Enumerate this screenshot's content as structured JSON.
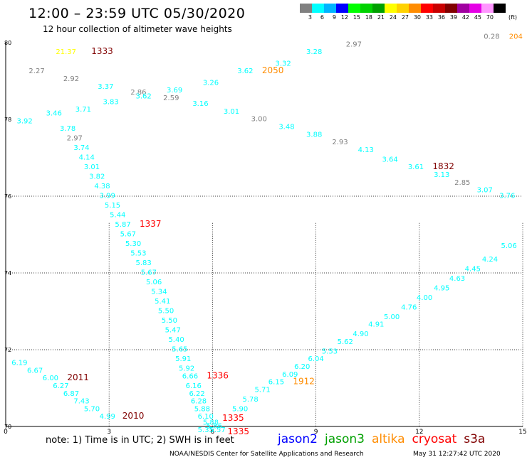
{
  "header": {
    "title": "12:00 – 23:59 UTC 05/30/2020",
    "subtitle": "12 hour collection of altimeter wave heights"
  },
  "legend": {
    "unit": "(ft)",
    "items": [
      {
        "label": "3",
        "color": "#808080"
      },
      {
        "label": "6",
        "color": "#00ffff"
      },
      {
        "label": "9",
        "color": "#00b4ff"
      },
      {
        "label": "12",
        "color": "#0000ff"
      },
      {
        "label": "15",
        "color": "#00ff00"
      },
      {
        "label": "18",
        "color": "#00d200"
      },
      {
        "label": "21",
        "color": "#00a000"
      },
      {
        "label": "24",
        "color": "#ffff00"
      },
      {
        "label": "27",
        "color": "#ffd200"
      },
      {
        "label": "30",
        "color": "#ff8c00"
      },
      {
        "label": "33",
        "color": "#ff0000"
      },
      {
        "label": "36",
        "color": "#c80000"
      },
      {
        "label": "39",
        "color": "#800000"
      },
      {
        "label": "42",
        "color": "#a000a0"
      },
      {
        "label": "45",
        "color": "#e600e6"
      },
      {
        "label": "70",
        "color": "#ff96ff"
      },
      {
        "label": "",
        "color": "#000000"
      }
    ]
  },
  "axes": {
    "x_ticks": [
      "0",
      "3",
      "6",
      "9",
      "12",
      "15"
    ],
    "y_ticks": [
      "80",
      "78",
      "76",
      "74",
      "72",
      "70"
    ]
  },
  "map_data": {
    "type": "scatter-map",
    "x_range": [
      0,
      15
    ],
    "y_range": [
      70,
      80
    ],
    "grid": true,
    "labels": [
      {
        "text": "21.37",
        "x": 1.75,
        "y": 79.7,
        "color": "#ffff00"
      },
      {
        "text": "1333",
        "x": 2.8,
        "y": 79.7,
        "color": "#800000"
      },
      {
        "text": "0.28",
        "x": 14.1,
        "y": 80.1,
        "color": "#808080"
      },
      {
        "text": "204",
        "x": 14.8,
        "y": 80.1,
        "color": "#ff8c00"
      },
      {
        "text": "2.27",
        "x": 0.9,
        "y": 79.2,
        "color": "#808080"
      },
      {
        "text": "2.92",
        "x": 1.9,
        "y": 79.0,
        "color": "#808080"
      },
      {
        "text": "3.37",
        "x": 2.9,
        "y": 78.8,
        "color": "#00ffff"
      },
      {
        "text": "2.86",
        "x": 3.85,
        "y": 78.65,
        "color": "#808080"
      },
      {
        "text": "3.62",
        "x": 4.0,
        "y": 78.55,
        "color": "#00ffff"
      },
      {
        "text": "3.69",
        "x": 4.9,
        "y": 78.7,
        "color": "#00ffff"
      },
      {
        "text": "2.59",
        "x": 4.8,
        "y": 78.5,
        "color": "#808080"
      },
      {
        "text": "3.26",
        "x": 5.95,
        "y": 78.9,
        "color": "#00ffff"
      },
      {
        "text": "3.62",
        "x": 6.95,
        "y": 79.2,
        "color": "#00ffff"
      },
      {
        "text": "2050",
        "x": 7.75,
        "y": 79.2,
        "color": "#ff8c00"
      },
      {
        "text": "3.32",
        "x": 8.05,
        "y": 79.4,
        "color": "#00ffff"
      },
      {
        "text": "3.28",
        "x": 8.95,
        "y": 79.7,
        "color": "#00ffff"
      },
      {
        "text": "2.97",
        "x": 10.1,
        "y": 79.9,
        "color": "#808080"
      },
      {
        "text": "3.83",
        "x": 3.05,
        "y": 78.4,
        "color": "#00ffff"
      },
      {
        "text": "3.16",
        "x": 5.65,
        "y": 78.35,
        "color": "#00ffff"
      },
      {
        "text": "3.01",
        "x": 6.55,
        "y": 78.15,
        "color": "#00ffff"
      },
      {
        "text": "3.00",
        "x": 7.35,
        "y": 77.95,
        "color": "#808080"
      },
      {
        "text": "3.48",
        "x": 8.15,
        "y": 77.75,
        "color": "#00ffff"
      },
      {
        "text": "3.88",
        "x": 8.95,
        "y": 77.55,
        "color": "#00ffff"
      },
      {
        "text": "2.93",
        "x": 9.7,
        "y": 77.35,
        "color": "#808080"
      },
      {
        "text": "4.13",
        "x": 10.45,
        "y": 77.15,
        "color": "#00ffff"
      },
      {
        "text": "3.64",
        "x": 11.15,
        "y": 76.9,
        "color": "#00ffff"
      },
      {
        "text": "3.61",
        "x": 11.9,
        "y": 76.7,
        "color": "#00ffff"
      },
      {
        "text": "1832",
        "x": 12.7,
        "y": 76.7,
        "color": "#800000"
      },
      {
        "text": "3.13",
        "x": 12.65,
        "y": 76.5,
        "color": "#00ffff"
      },
      {
        "text": "2.85",
        "x": 13.25,
        "y": 76.3,
        "color": "#808080"
      },
      {
        "text": "3.07",
        "x": 13.9,
        "y": 76.1,
        "color": "#00ffff"
      },
      {
        "text": "3.76",
        "x": 14.55,
        "y": 75.95,
        "color": "#00ffff"
      },
      {
        "text": "3.92",
        "x": 0.55,
        "y": 77.9,
        "color": "#00ffff"
      },
      {
        "text": "3.46",
        "x": 1.4,
        "y": 78.1,
        "color": "#00ffff"
      },
      {
        "text": "3.71",
        "x": 2.25,
        "y": 78.2,
        "color": "#00ffff"
      },
      {
        "text": "3.78",
        "x": 1.8,
        "y": 77.7,
        "color": "#00ffff"
      },
      {
        "text": "2.97",
        "x": 2.0,
        "y": 77.45,
        "color": "#808080"
      },
      {
        "text": "3.74",
        "x": 2.2,
        "y": 77.2,
        "color": "#00ffff"
      },
      {
        "text": "4.14",
        "x": 2.35,
        "y": 76.95,
        "color": "#00ffff"
      },
      {
        "text": "3.01",
        "x": 2.5,
        "y": 76.7,
        "color": "#00ffff"
      },
      {
        "text": "3.82",
        "x": 2.65,
        "y": 76.45,
        "color": "#00ffff"
      },
      {
        "text": "4.38",
        "x": 2.8,
        "y": 76.2,
        "color": "#00ffff"
      },
      {
        "text": "3.99",
        "x": 2.95,
        "y": 75.95,
        "color": "#00ffff"
      },
      {
        "text": "5.15",
        "x": 3.1,
        "y": 75.7,
        "color": "#00ffff"
      },
      {
        "text": "5.44",
        "x": 3.25,
        "y": 75.45,
        "color": "#00ffff"
      },
      {
        "text": "5.87",
        "x": 3.4,
        "y": 75.2,
        "color": "#00ffff"
      },
      {
        "text": "1337",
        "x": 4.2,
        "y": 75.2,
        "color": "#ff0000"
      },
      {
        "text": "5.67",
        "x": 3.55,
        "y": 74.95,
        "color": "#00ffff"
      },
      {
        "text": "5.30",
        "x": 3.7,
        "y": 74.7,
        "color": "#00ffff"
      },
      {
        "text": "5.53",
        "x": 3.85,
        "y": 74.45,
        "color": "#00ffff"
      },
      {
        "text": "5.83",
        "x": 4.0,
        "y": 74.2,
        "color": "#00ffff"
      },
      {
        "text": "5.67",
        "x": 4.15,
        "y": 73.95,
        "color": "#00ffff"
      },
      {
        "text": "5.06",
        "x": 4.3,
        "y": 73.7,
        "color": "#00ffff"
      },
      {
        "text": "5.34",
        "x": 4.45,
        "y": 73.45,
        "color": "#00ffff"
      },
      {
        "text": "5.41",
        "x": 4.55,
        "y": 73.2,
        "color": "#00ffff"
      },
      {
        "text": "5.50",
        "x": 4.65,
        "y": 72.95,
        "color": "#00ffff"
      },
      {
        "text": "5.50",
        "x": 4.75,
        "y": 72.7,
        "color": "#00ffff"
      },
      {
        "text": "5.47",
        "x": 4.85,
        "y": 72.45,
        "color": "#00ffff"
      },
      {
        "text": "5.40",
        "x": 4.95,
        "y": 72.2,
        "color": "#00ffff"
      },
      {
        "text": "5.65",
        "x": 5.05,
        "y": 71.95,
        "color": "#00ffff"
      },
      {
        "text": "5.91",
        "x": 5.15,
        "y": 71.7,
        "color": "#00ffff"
      },
      {
        "text": "5.92",
        "x": 5.25,
        "y": 71.45,
        "color": "#00ffff"
      },
      {
        "text": "6.66",
        "x": 5.35,
        "y": 71.25,
        "color": "#00ffff"
      },
      {
        "text": "1336",
        "x": 6.15,
        "y": 71.25,
        "color": "#ff0000"
      },
      {
        "text": "6.16",
        "x": 5.45,
        "y": 71.0,
        "color": "#00ffff"
      },
      {
        "text": "6.22",
        "x": 5.55,
        "y": 70.8,
        "color": "#00ffff"
      },
      {
        "text": "6.28",
        "x": 5.6,
        "y": 70.6,
        "color": "#00ffff"
      },
      {
        "text": "5.88",
        "x": 5.7,
        "y": 70.4,
        "color": "#00ffff"
      },
      {
        "text": "6.10",
        "x": 5.8,
        "y": 70.2,
        "color": "#00ffff"
      },
      {
        "text": "5.88",
        "x": 5.95,
        "y": 70.05,
        "color": "#00ffff"
      },
      {
        "text": "5.86",
        "x": 6.05,
        "y": 69.95,
        "color": "#00ffff"
      },
      {
        "text": "5.35",
        "x": 5.8,
        "y": 69.85,
        "color": "#00ffff"
      },
      {
        "text": "5.57",
        "x": 6.15,
        "y": 69.85,
        "color": "#00ffff"
      },
      {
        "text": "1335",
        "x": 6.6,
        "y": 70.15,
        "color": "#ff0000"
      },
      {
        "text": "1335",
        "x": 6.75,
        "y": 69.8,
        "color": "#ff0000"
      },
      {
        "text": "5.90",
        "x": 6.8,
        "y": 70.4,
        "color": "#00ffff"
      },
      {
        "text": "5.78",
        "x": 7.1,
        "y": 70.65,
        "color": "#00ffff"
      },
      {
        "text": "5.71",
        "x": 7.45,
        "y": 70.9,
        "color": "#00ffff"
      },
      {
        "text": "6.15",
        "x": 7.85,
        "y": 71.1,
        "color": "#00ffff"
      },
      {
        "text": "6.09",
        "x": 8.25,
        "y": 71.3,
        "color": "#00ffff"
      },
      {
        "text": "1912",
        "x": 8.65,
        "y": 71.1,
        "color": "#ff8c00"
      },
      {
        "text": "6.20",
        "x": 8.6,
        "y": 71.5,
        "color": "#00ffff"
      },
      {
        "text": "6.04",
        "x": 9.0,
        "y": 71.7,
        "color": "#00ffff"
      },
      {
        "text": "5.53",
        "x": 9.4,
        "y": 71.9,
        "color": "#00ffff"
      },
      {
        "text": "5.62",
        "x": 9.85,
        "y": 72.15,
        "color": "#00ffff"
      },
      {
        "text": "4.90",
        "x": 10.3,
        "y": 72.35,
        "color": "#00ffff"
      },
      {
        "text": "4.91",
        "x": 10.75,
        "y": 72.6,
        "color": "#00ffff"
      },
      {
        "text": "5.00",
        "x": 11.2,
        "y": 72.8,
        "color": "#00ffff"
      },
      {
        "text": "4.76",
        "x": 11.7,
        "y": 73.05,
        "color": "#00ffff"
      },
      {
        "text": "4.00",
        "x": 12.15,
        "y": 73.3,
        "color": "#00ffff"
      },
      {
        "text": "4.95",
        "x": 12.65,
        "y": 73.55,
        "color": "#00ffff"
      },
      {
        "text": "4.63",
        "x": 13.1,
        "y": 73.8,
        "color": "#00ffff"
      },
      {
        "text": "4.45",
        "x": 13.55,
        "y": 74.05,
        "color": "#00ffff"
      },
      {
        "text": "4.24",
        "x": 14.05,
        "y": 74.3,
        "color": "#00ffff"
      },
      {
        "text": "5.06",
        "x": 14.6,
        "y": 74.65,
        "color": "#00ffff"
      },
      {
        "text": "6.19",
        "x": 0.4,
        "y": 71.6,
        "color": "#00ffff"
      },
      {
        "text": "6.67",
        "x": 0.85,
        "y": 71.4,
        "color": "#00ffff"
      },
      {
        "text": "6.00",
        "x": 1.3,
        "y": 71.2,
        "color": "#00ffff"
      },
      {
        "text": "2011",
        "x": 2.1,
        "y": 71.2,
        "color": "#800000"
      },
      {
        "text": "6.27",
        "x": 1.6,
        "y": 71.0,
        "color": "#00ffff"
      },
      {
        "text": "6.87",
        "x": 1.9,
        "y": 70.8,
        "color": "#00ffff"
      },
      {
        "text": "7.43",
        "x": 2.2,
        "y": 70.6,
        "color": "#00ffff"
      },
      {
        "text": "5.70",
        "x": 2.5,
        "y": 70.4,
        "color": "#00ffff"
      },
      {
        "text": "4.99",
        "x": 2.95,
        "y": 70.2,
        "color": "#00ffff"
      },
      {
        "text": "2010",
        "x": 3.7,
        "y": 70.2,
        "color": "#800000"
      }
    ]
  },
  "footer": {
    "note": "note:  1) Time is in UTC; 2) SWH is in feet",
    "satellites": [
      {
        "name": "jason2",
        "color": "#0000ff"
      },
      {
        "name": "jason3",
        "color": "#00a000"
      },
      {
        "name": "altika",
        "color": "#ff8c00"
      },
      {
        "name": "cryosat",
        "color": "#ff0000"
      },
      {
        "name": "s3a",
        "color": "#800000"
      }
    ],
    "credit": "NOAA/NESDIS Center for Satellite Applications and Research",
    "timestamp": "May 31 12:27:42 UTC 2020"
  }
}
